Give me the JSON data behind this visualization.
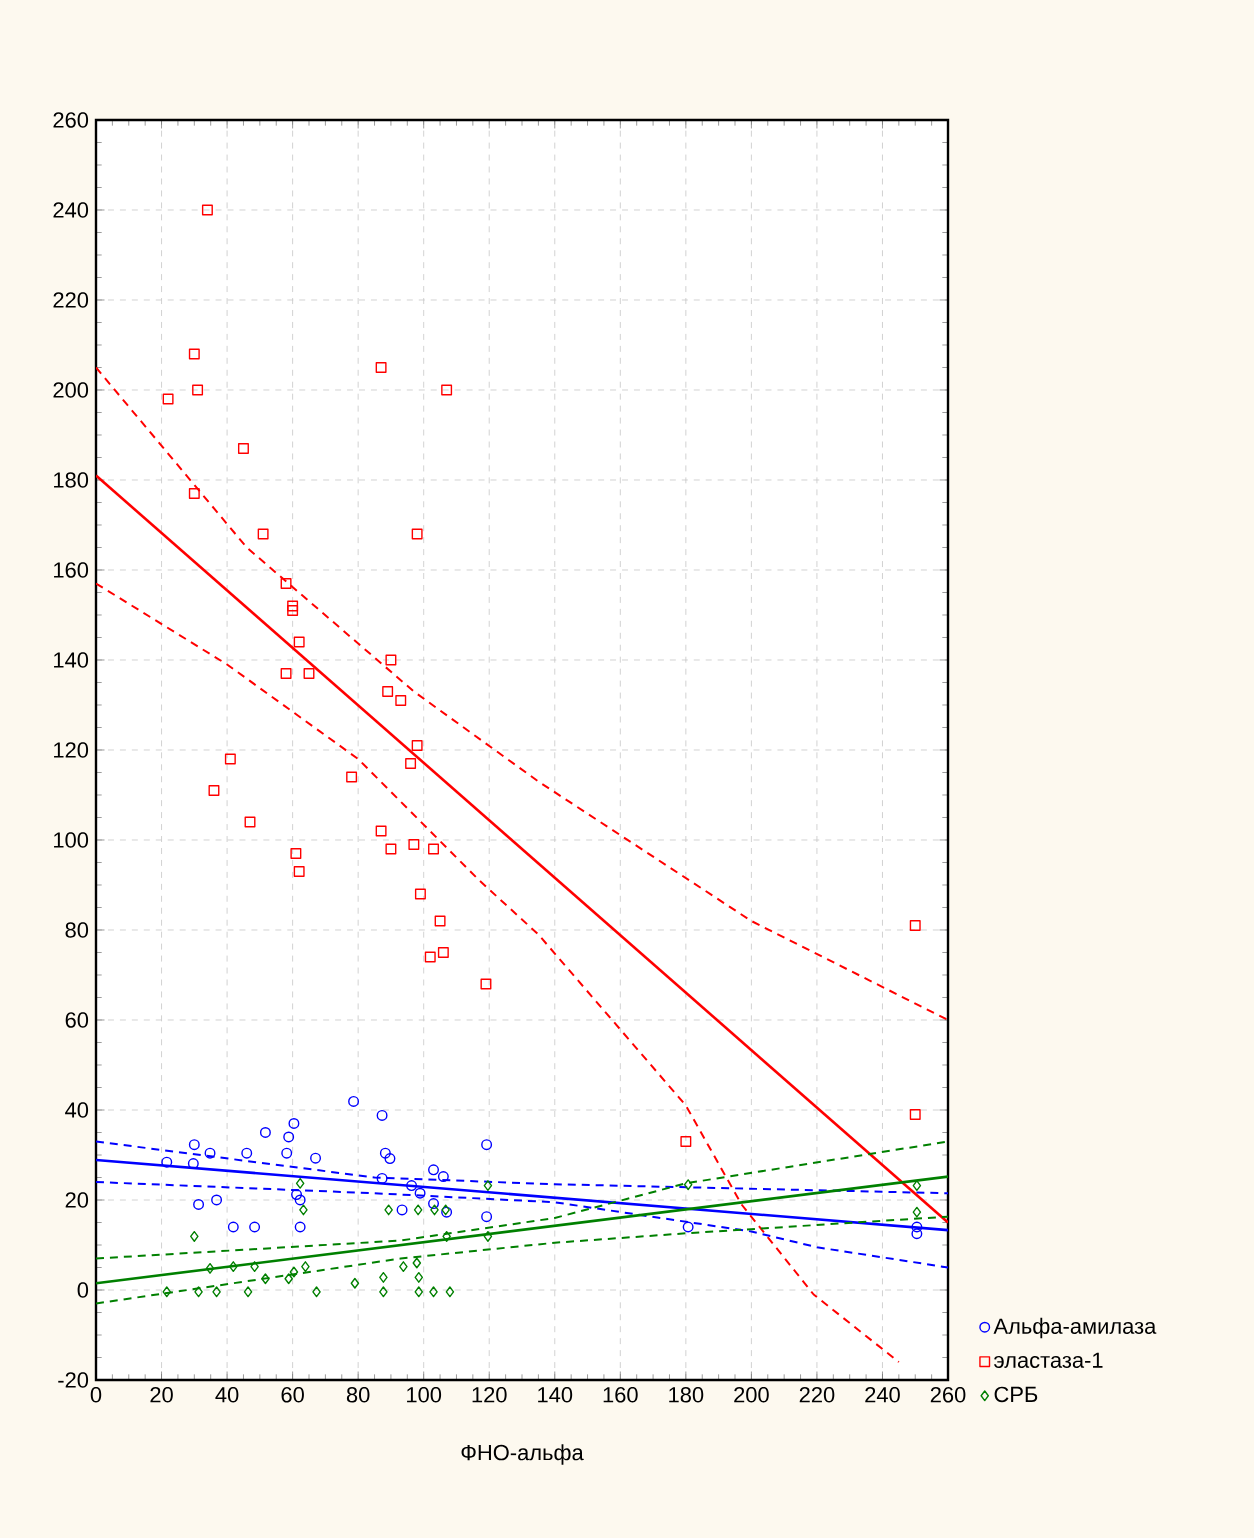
{
  "chart_data": {
    "type": "scatter",
    "xlabel": "ФНО-альфа",
    "xlim": [
      0,
      260
    ],
    "ylim": [
      -20,
      260
    ],
    "xticks": [
      0,
      20,
      40,
      60,
      80,
      100,
      120,
      140,
      160,
      180,
      200,
      220,
      240,
      260
    ],
    "yticks": [
      -20,
      0,
      20,
      40,
      60,
      80,
      100,
      120,
      140,
      160,
      180,
      200,
      220,
      240,
      260
    ],
    "grid": true,
    "legend": "bottom right",
    "series": [
      {
        "name": "Альфа-амилаза",
        "color": "#0000ff",
        "marker": "circle",
        "x": [
          21.6,
          30,
          29.7,
          34.8,
          31.3,
          36.8,
          41.9,
          46,
          48.4,
          51.7,
          58.2,
          58.8,
          60.4,
          61.2,
          62.3,
          62.3,
          67,
          78.6,
          87.3,
          88.3,
          89.7,
          87.3,
          93.4,
          96.3,
          98.9,
          103,
          106,
          103,
          107,
          119.2,
          119.2,
          180.7,
          250.5,
          250.5
        ],
        "values": [
          28.4,
          32.3,
          28.1,
          30.4,
          19,
          20,
          14,
          30.4,
          14,
          35,
          30.4,
          34,
          37,
          21.2,
          20,
          14,
          29.3,
          41.9,
          38.8,
          30.4,
          29.2,
          24.8,
          17.8,
          23.2,
          21.5,
          26.7,
          25.2,
          19.2,
          17.3,
          32.3,
          16.3,
          14,
          14,
          12.5
        ]
      },
      {
        "name": "эластаза-1",
        "color": "#ff0000",
        "marker": "square",
        "x": [
          22,
          30,
          31,
          30,
          34,
          36,
          41,
          45,
          47,
          51,
          58,
          58,
          60,
          60,
          61,
          62,
          62,
          65,
          78,
          87,
          87,
          89,
          90,
          90,
          93,
          96,
          97,
          98,
          98,
          99,
          102,
          103,
          105,
          106,
          107,
          119,
          180,
          250,
          250
        ],
        "values": [
          198,
          208,
          200,
          177,
          240,
          111,
          118,
          187,
          104,
          168,
          157,
          137,
          151,
          152,
          97,
          93,
          144,
          137,
          114,
          205,
          102,
          133,
          140,
          98,
          131,
          117,
          99,
          168,
          121,
          88,
          74,
          98,
          82,
          75,
          200,
          68,
          33,
          81,
          39
        ]
      },
      {
        "name": "СРБ",
        "color": "#008000",
        "marker": "diamond",
        "x": [
          30,
          21.6,
          31.3,
          34.8,
          36.8,
          41.9,
          46.4,
          48.4,
          51.7,
          58.8,
          60.4,
          62.3,
          63.3,
          63.9,
          67.3,
          79,
          87.7,
          87.7,
          89.3,
          93.8,
          97.9,
          98.5,
          98.5,
          98.3,
          103,
          103.3,
          106.7,
          108,
          107,
          119.6,
          119.6,
          180.7,
          250.5,
          250.5
        ],
        "values": [
          11.9,
          -0.4,
          -0.4,
          4.8,
          -0.4,
          5.2,
          -0.4,
          5.2,
          2.5,
          2.5,
          4,
          23.7,
          17.8,
          5.2,
          -0.4,
          1.5,
          2.8,
          -0.4,
          17.8,
          5.2,
          6,
          2.8,
          -0.4,
          17.8,
          -0.4,
          17.8,
          17.8,
          -0.4,
          11.9,
          23.2,
          11.9,
          23.4,
          23.2,
          17.3
        ]
      },
      {
        "type": "line",
        "color": "#0000ff",
        "x": [
          0,
          260
        ],
        "values": [
          28.9,
          13.3
        ]
      },
      {
        "type": "line",
        "color": "#0000ff",
        "line_style": "dashed",
        "x": [
          0,
          85,
          140,
          200,
          260
        ],
        "values": [
          33,
          25,
          23.5,
          22.5,
          21.5
        ]
      },
      {
        "type": "line",
        "color": "#0000ff",
        "line_style": "dashed",
        "x": [
          0,
          85,
          140,
          200,
          220,
          260
        ],
        "values": [
          24,
          21.5,
          19.5,
          13,
          9.5,
          5
        ]
      },
      {
        "type": "line",
        "color": "#ff0000",
        "x": [
          0,
          260
        ],
        "values": [
          181,
          15
        ]
      },
      {
        "type": "line",
        "color": "#ff0000",
        "line_style": "dashed",
        "x": [
          0,
          46,
          97,
          135,
          200,
          260
        ],
        "values": [
          205,
          165,
          133,
          113,
          82,
          60
        ]
      },
      {
        "type": "line",
        "color": "#ff0000",
        "line_style": "dashed",
        "x": [
          0,
          40,
          80,
          117,
          135,
          180,
          197,
          219,
          245
        ],
        "values": [
          157,
          139,
          118,
          91,
          79,
          41,
          19,
          -1,
          -16
        ]
      },
      {
        "type": "line",
        "color": "#008000",
        "x": [
          0,
          260
        ],
        "values": [
          1.5,
          25.2
        ]
      },
      {
        "type": "line",
        "color": "#008000",
        "line_style": "dashed",
        "x": [
          0,
          93,
          140,
          180,
          260
        ],
        "values": [
          7,
          11,
          16,
          23.7,
          33
        ]
      },
      {
        "type": "line",
        "color": "#008000",
        "line_style": "dashed",
        "x": [
          0,
          93,
          140,
          180,
          260
        ],
        "values": [
          -3,
          7,
          10.5,
          12.6,
          16.3
        ]
      }
    ]
  }
}
